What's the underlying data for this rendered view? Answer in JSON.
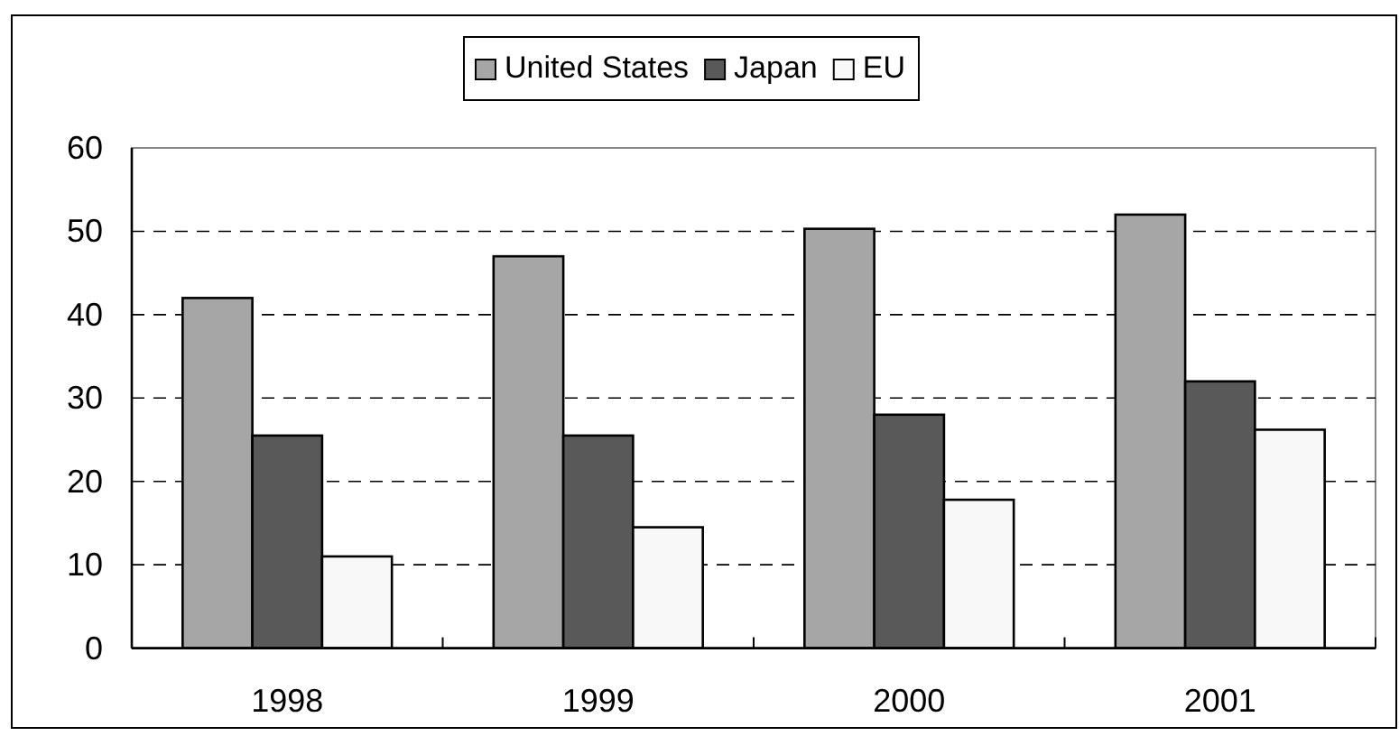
{
  "chart_data": {
    "type": "bar",
    "categories": [
      "1998",
      "1999",
      "2000",
      "2001"
    ],
    "series": [
      {
        "name": "United States",
        "color": "#a6a6a6",
        "values": [
          42,
          47,
          50.3,
          52
        ]
      },
      {
        "name": "Japan",
        "color": "#595959",
        "values": [
          25.5,
          25.5,
          28,
          32
        ]
      },
      {
        "name": "EU",
        "color": "#f8f8f8",
        "values": [
          11,
          14.5,
          17.8,
          26.2
        ]
      }
    ],
    "ylim": [
      0,
      60
    ],
    "yticks": [
      0,
      10,
      20,
      30,
      40,
      50,
      60
    ],
    "grid": "y",
    "legend": "top"
  }
}
